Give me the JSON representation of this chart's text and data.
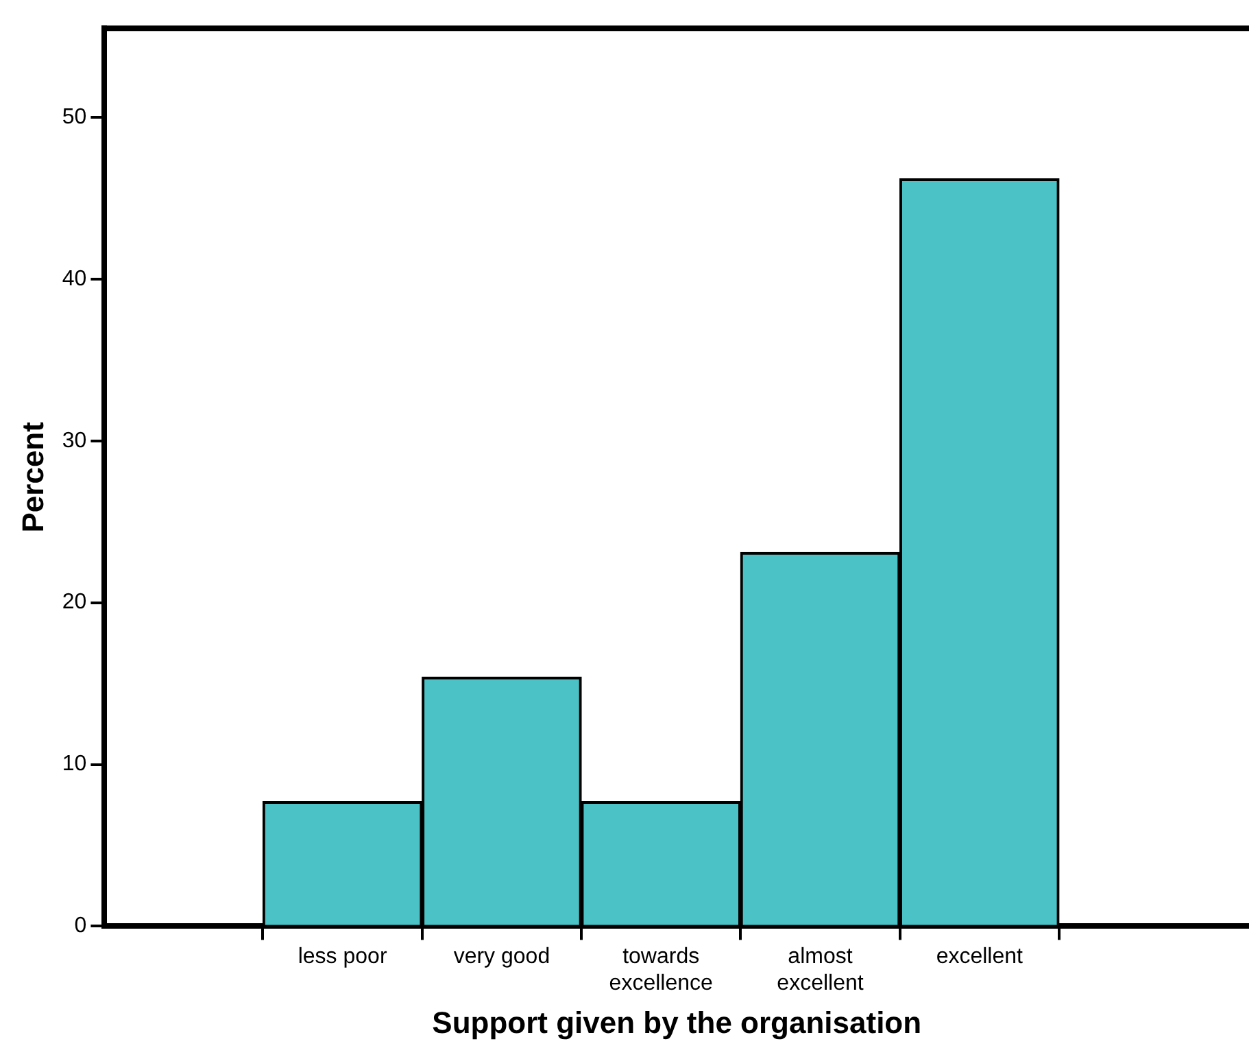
{
  "chart_data": {
    "type": "bar",
    "xlabel": "Support given by the organisation",
    "ylabel": "Percent",
    "categories": [
      "less poor",
      "very good",
      "towards excellence",
      "almost excellent",
      "excellent"
    ],
    "values": [
      7.7,
      15.4,
      7.7,
      23.1,
      46.2
    ],
    "color": "#4bc2c5",
    "ylim": [
      0,
      55.5
    ],
    "yticks": [
      0,
      10,
      20,
      30,
      40,
      50
    ],
    "grid": false,
    "legend": false
  }
}
